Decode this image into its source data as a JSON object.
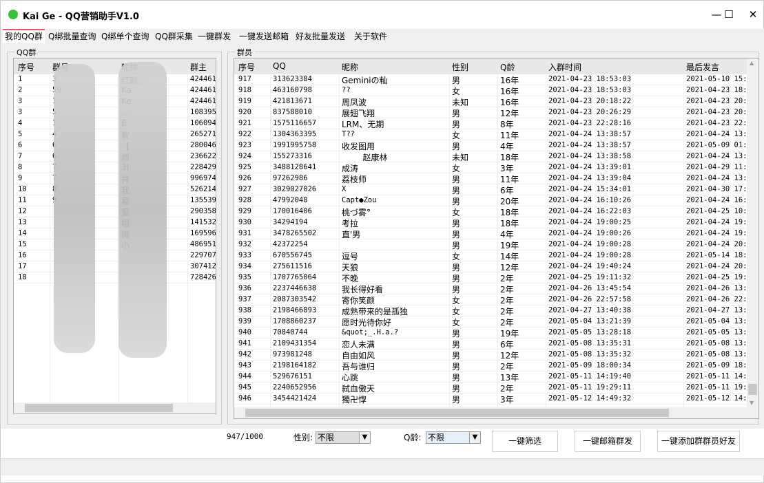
{
  "window": {
    "title": "Kai Ge - QQ营销助手V1.0",
    "minimize": "—",
    "maximize": "☐",
    "close": "✕"
  },
  "tabs": [
    "我的QQ群",
    "Q绑批量查询",
    "Q绑单个查询",
    "QQ群采集",
    "一键群发",
    "一键发送邮箱",
    "好友批量发送",
    "关于软件"
  ],
  "groups_panel": {
    "label": "QQ群",
    "columns": [
      "序号",
      "群号",
      "昵称",
      "群主"
    ],
    "rows": [
      [
        "1",
        "3",
        "红颜...",
        "424461"
      ],
      [
        "2",
        "59",
        "Ka",
        "424461"
      ],
      [
        "3",
        "1",
        "Ke",
        "424461"
      ],
      [
        "3",
        "5",
        "...",
        "108395"
      ],
      [
        "4",
        "1",
        "E",
        "106094"
      ],
      [
        "5",
        "4",
        "智",
        "265271"
      ],
      [
        "6",
        "6",
        "【",
        "280046"
      ],
      [
        "7",
        "6",
        "酉",
        "236622"
      ],
      [
        "8",
        "7",
        "3I",
        "228429"
      ],
      [
        "9",
        "7",
        "祥",
        "996974"
      ],
      [
        "10",
        "8",
        "我",
        "526214"
      ],
      [
        "11",
        "9",
        "易",
        "135539"
      ],
      [
        "12",
        "",
        "爱",
        "290358"
      ],
      [
        "13",
        "",
        "相",
        "141532"
      ],
      [
        "14",
        "",
        "微",
        "169596"
      ],
      [
        "15",
        "",
        "小",
        "486951"
      ],
      [
        "16",
        "",
        "",
        "229707"
      ],
      [
        "17",
        "",
        "",
        "307412"
      ],
      [
        "18",
        "",
        "",
        "728426"
      ]
    ]
  },
  "members_panel": {
    "label": "群员",
    "columns": [
      "序号",
      "QQ",
      "昵称",
      "性别",
      "Q龄",
      "入群时间",
      "最后发言"
    ],
    "rows": [
      [
        "917",
        "313623384",
        "Geminiの籼",
        "男",
        "16年",
        "2021-04-23 18:53:03",
        "2021-05-10 15:5"
      ],
      [
        "918",
        "463160798",
        "??",
        "女",
        "16年",
        "2021-04-23 18:53:03",
        "2021-04-23 18:5"
      ],
      [
        "919",
        "421813671",
        "周凤波",
        "未知",
        "16年",
        "2021-04-23 20:18:22",
        "2021-04-23 20:2"
      ],
      [
        "920",
        "837588010",
        "展翅飞翔",
        "男",
        "12年",
        "2021-04-23 20:26:29",
        "2021-04-23 20:2"
      ],
      [
        "921",
        "1575116657",
        "LRM、无期",
        "男",
        "8年",
        "2021-04-23 22:28:16",
        "2021-04-23 22:2"
      ],
      [
        "922",
        "1304363395",
        "T??",
        "女",
        "11年",
        "2021-04-24 13:38:57",
        "2021-04-24 13:3"
      ],
      [
        "923",
        "1991995758",
        "收发图用",
        "男",
        "4年",
        "2021-04-24 13:38:57",
        "2021-05-09 01:"
      ],
      [
        "924",
        "155273316",
        "        赵康林",
        "未知",
        "18年",
        "2021-04-24 13:38:58",
        "2021-04-24 13:3"
      ],
      [
        "925",
        "3488128641",
        "成涛",
        "女",
        "3年",
        "2021-04-24 13:39:01",
        "2021-04-29 11:"
      ],
      [
        "926",
        "97262986",
        "荔枝师",
        "男",
        "11年",
        "2021-04-24 13:39:04",
        "2021-04-24 13:3"
      ],
      [
        "927",
        "3029027026",
        "X",
        "男",
        "6年",
        "2021-04-24 15:34:01",
        "2021-04-30 17:4"
      ],
      [
        "928",
        "47992048",
        "Capt●Zou",
        "男",
        "20年",
        "2021-04-24 16:10:26",
        "2021-04-24 16:"
      ],
      [
        "929",
        "170016406",
        "桃づ雾°",
        "女",
        "18年",
        "2021-04-24 16:22:03",
        "2021-04-25 10:3"
      ],
      [
        "930",
        "34294194",
        "考拉",
        "男",
        "18年",
        "2021-04-24 19:00:25",
        "2021-04-24 19:0"
      ],
      [
        "931",
        "3478265502",
        "直'男",
        "男",
        "4年",
        "2021-04-24 19:00:26",
        "2021-04-24 19:0"
      ],
      [
        "932",
        "42372254",
        "",
        "男",
        "19年",
        "2021-04-24 19:00:28",
        "2021-04-24 20:0"
      ],
      [
        "933",
        "670556745",
        "逗号",
        "女",
        "14年",
        "2021-04-24 19:00:28",
        "2021-05-14 18:5"
      ],
      [
        "934",
        "275611516",
        "天狼",
        "男",
        "12年",
        "2021-04-24 19:40:24",
        "2021-04-24 20:0"
      ],
      [
        "935",
        "1707765064",
        "不晚",
        "男",
        "2年",
        "2021-04-25 19:11:32",
        "2021-04-25 19:"
      ],
      [
        "936",
        "2237446638",
        "我长得好看",
        "男",
        "2年",
        "2021-04-26 13:45:54",
        "2021-04-26 13:4"
      ],
      [
        "937",
        "2087303542",
        "寄你笑颜",
        "女",
        "2年",
        "2021-04-26 22:57:58",
        "2021-04-26 22:5"
      ],
      [
        "938",
        "2198466893",
        "成熟带来的是孤独",
        "女",
        "2年",
        "2021-04-27 13:40:38",
        "2021-04-27 13:4"
      ],
      [
        "939",
        "1708860237",
        "愿时光待你好",
        "女",
        "2年",
        "2021-05-04 13:21:39",
        "2021-05-04 13:2"
      ],
      [
        "940",
        "70840744",
        "&quot;_.H.a.?",
        "男",
        "19年",
        "2021-05-05 13:28:18",
        "2021-05-05 13:2"
      ],
      [
        "941",
        "2109431354",
        "恋人未满",
        "男",
        "6年",
        "2021-05-08 13:35:31",
        "2021-05-08 13:3"
      ],
      [
        "942",
        "973981248",
        "自由如风",
        "男",
        "12年",
        "2021-05-08 13:35:32",
        "2021-05-08 13:3"
      ],
      [
        "943",
        "2198164182",
        "吾与谁归",
        "男",
        "2年",
        "2021-05-09 18:00:34",
        "2021-05-09 18:0"
      ],
      [
        "944",
        "529676151",
        "心跳",
        "男",
        "13年",
        "2021-05-11 14:19:40",
        "2021-05-11 14:"
      ],
      [
        "945",
        "2240652956",
        "弑血傲天",
        "男",
        "2年",
        "2021-05-11 19:29:11",
        "2021-05-11 19:2"
      ],
      [
        "946",
        "3454421424",
        "獨卍惸",
        "男",
        "3年",
        "2021-05-12 14:49:32",
        "2021-05-12 14:4"
      ]
    ]
  },
  "footer": {
    "count": "947/1000",
    "gender_label": "性别:",
    "gender_value": "不限",
    "qage_label": "Q龄:",
    "qage_value": "不限",
    "filter_button": "一键筛选",
    "mail_button": "一键邮箱群发",
    "add_friends_button": "一键添加群群员好友"
  },
  "colors": {
    "accent": "#e8556b",
    "app_icon": "#3bbf3b"
  }
}
